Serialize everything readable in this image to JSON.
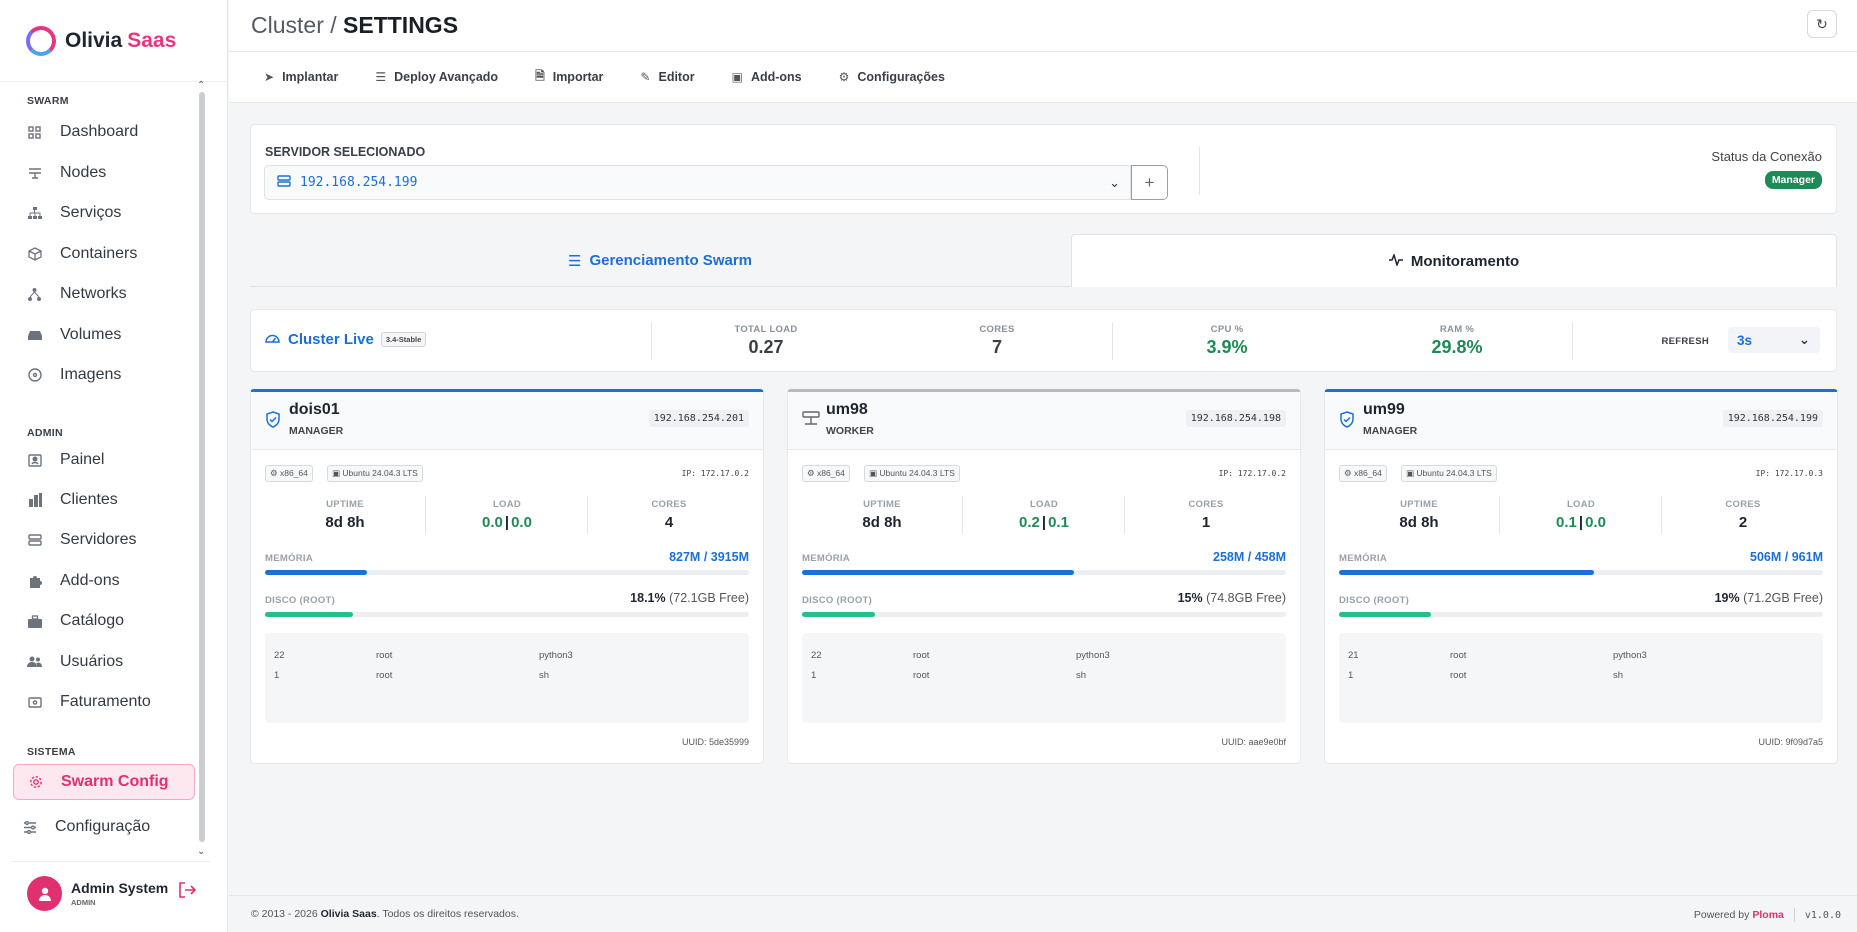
{
  "app": {
    "name_part1": "Olivia",
    "name_part2": "Saas",
    "brand_color": "#e0306f",
    "accent_color": "#1b6fd8"
  },
  "sidebar": {
    "sections": [
      "SWARM",
      "ADMIN",
      "SISTEMA"
    ],
    "items": [
      {
        "label": "Dashboard",
        "icon": "grid-icon"
      },
      {
        "label": "Nodes",
        "icon": "nodes-icon"
      },
      {
        "label": "Serviços",
        "icon": "sitemap-icon"
      },
      {
        "label": "Containers",
        "icon": "box-icon"
      },
      {
        "label": "Networks",
        "icon": "network-icon"
      },
      {
        "label": "Volumes",
        "icon": "drive-icon"
      },
      {
        "label": "Imagens",
        "icon": "disc-icon"
      },
      {
        "label": "Painel",
        "icon": "panel-icon"
      },
      {
        "label": "Clientes",
        "icon": "building-icon"
      },
      {
        "label": "Servidores",
        "icon": "server-icon"
      },
      {
        "label": "Add-ons",
        "icon": "puzzle-icon"
      },
      {
        "label": "Catálogo",
        "icon": "briefcase-icon"
      },
      {
        "label": "Usuários",
        "icon": "users-icon"
      },
      {
        "label": "Faturamento",
        "icon": "cash-icon"
      },
      {
        "label": "Swarm Config",
        "icon": "gear-icon",
        "active": true
      },
      {
        "label": "Configuração",
        "icon": "sliders-icon"
      }
    ]
  },
  "user": {
    "name": "Admin System",
    "role": "ADMIN"
  },
  "header": {
    "crumb_prefix": "Cluster /",
    "crumb_title": "SETTINGS"
  },
  "toolbar": [
    "Implantar",
    "Deploy Avançado",
    "Importar",
    "Editor",
    "Add-ons",
    "Configurações"
  ],
  "server": {
    "label": "SERVIDOR SELECIONADO",
    "selected": "192.168.254.199",
    "add": "+",
    "status_label": "Status da Conexão",
    "status_badge": "Manager"
  },
  "tabs": {
    "swarm": "Gerenciamento Swarm",
    "monitor": "Monitoramento"
  },
  "stats": {
    "title": "Cluster Live",
    "version": "3.4-Stable",
    "total_load_label": "TOTAL LOAD",
    "total_load": "0.27",
    "cores_label": "CORES",
    "cores": "7",
    "cpu_label": "CPU %",
    "cpu": "3.9%",
    "ram_label": "RAM %",
    "ram": "29.8%",
    "refresh_label": "REFRESH",
    "refresh": "3s"
  },
  "labels": {
    "uptime": "UPTIME",
    "load": "LOAD",
    "cores": "CORES",
    "memory": "MEMÓRIA",
    "disk": "DISCO (ROOT)",
    "sep": "|"
  },
  "nodes": [
    {
      "name": "dois01",
      "role": "MANAGER",
      "ip": "192.168.254.201",
      "arch": "x86_64",
      "os": "Ubuntu 24.04.3 LTS",
      "internal_ip": "IP: 172.17.0.2",
      "uptime": "8d 8h",
      "load1": "0.0",
      "load2": "0.0",
      "cores": "4",
      "mem": "827M / 3915M",
      "mem_pct": 21.1,
      "disk_pct_text": "18.1%",
      "disk_free": "(72.1GB Free)",
      "disk_pct": 18.1,
      "procs": [
        [
          "22",
          "root",
          "python3"
        ],
        [
          "1",
          "root",
          "sh"
        ]
      ],
      "uuid": "UUID: 5de35999"
    },
    {
      "name": "um98",
      "role": "WORKER",
      "ip": "192.168.254.198",
      "arch": "x86_64",
      "os": "Ubuntu 24.04.3 LTS",
      "internal_ip": "IP: 172.17.0.2",
      "uptime": "8d 8h",
      "load1": "0.2",
      "load2": "0.1",
      "cores": "1",
      "mem": "258M / 458M",
      "mem_pct": 56.3,
      "disk_pct_text": "15%",
      "disk_free": "(74.8GB Free)",
      "disk_pct": 15,
      "procs": [
        [
          "22",
          "root",
          "python3"
        ],
        [
          "1",
          "root",
          "sh"
        ]
      ],
      "uuid": "UUID: aae9e0bf"
    },
    {
      "name": "um99",
      "role": "MANAGER",
      "ip": "192.168.254.199",
      "arch": "x86_64",
      "os": "Ubuntu 24.04.3 LTS",
      "internal_ip": "IP: 172.17.0.3",
      "uptime": "8d 8h",
      "load1": "0.1",
      "load2": "0.0",
      "cores": "2",
      "mem": "506M / 961M",
      "mem_pct": 52.7,
      "disk_pct_text": "19%",
      "disk_free": "(71.2GB Free)",
      "disk_pct": 19,
      "procs": [
        [
          "21",
          "root",
          "python3"
        ],
        [
          "1",
          "root",
          "sh"
        ]
      ],
      "uuid": "UUID: 9f09d7a5"
    }
  ],
  "footer": {
    "copy": "© 2013 - 2026",
    "company": "Olivia Saas",
    "rights": ". Todos os direitos reservados.",
    "powered": "Powered by",
    "powered_name": "Ploma",
    "version": "v1.0.0"
  }
}
